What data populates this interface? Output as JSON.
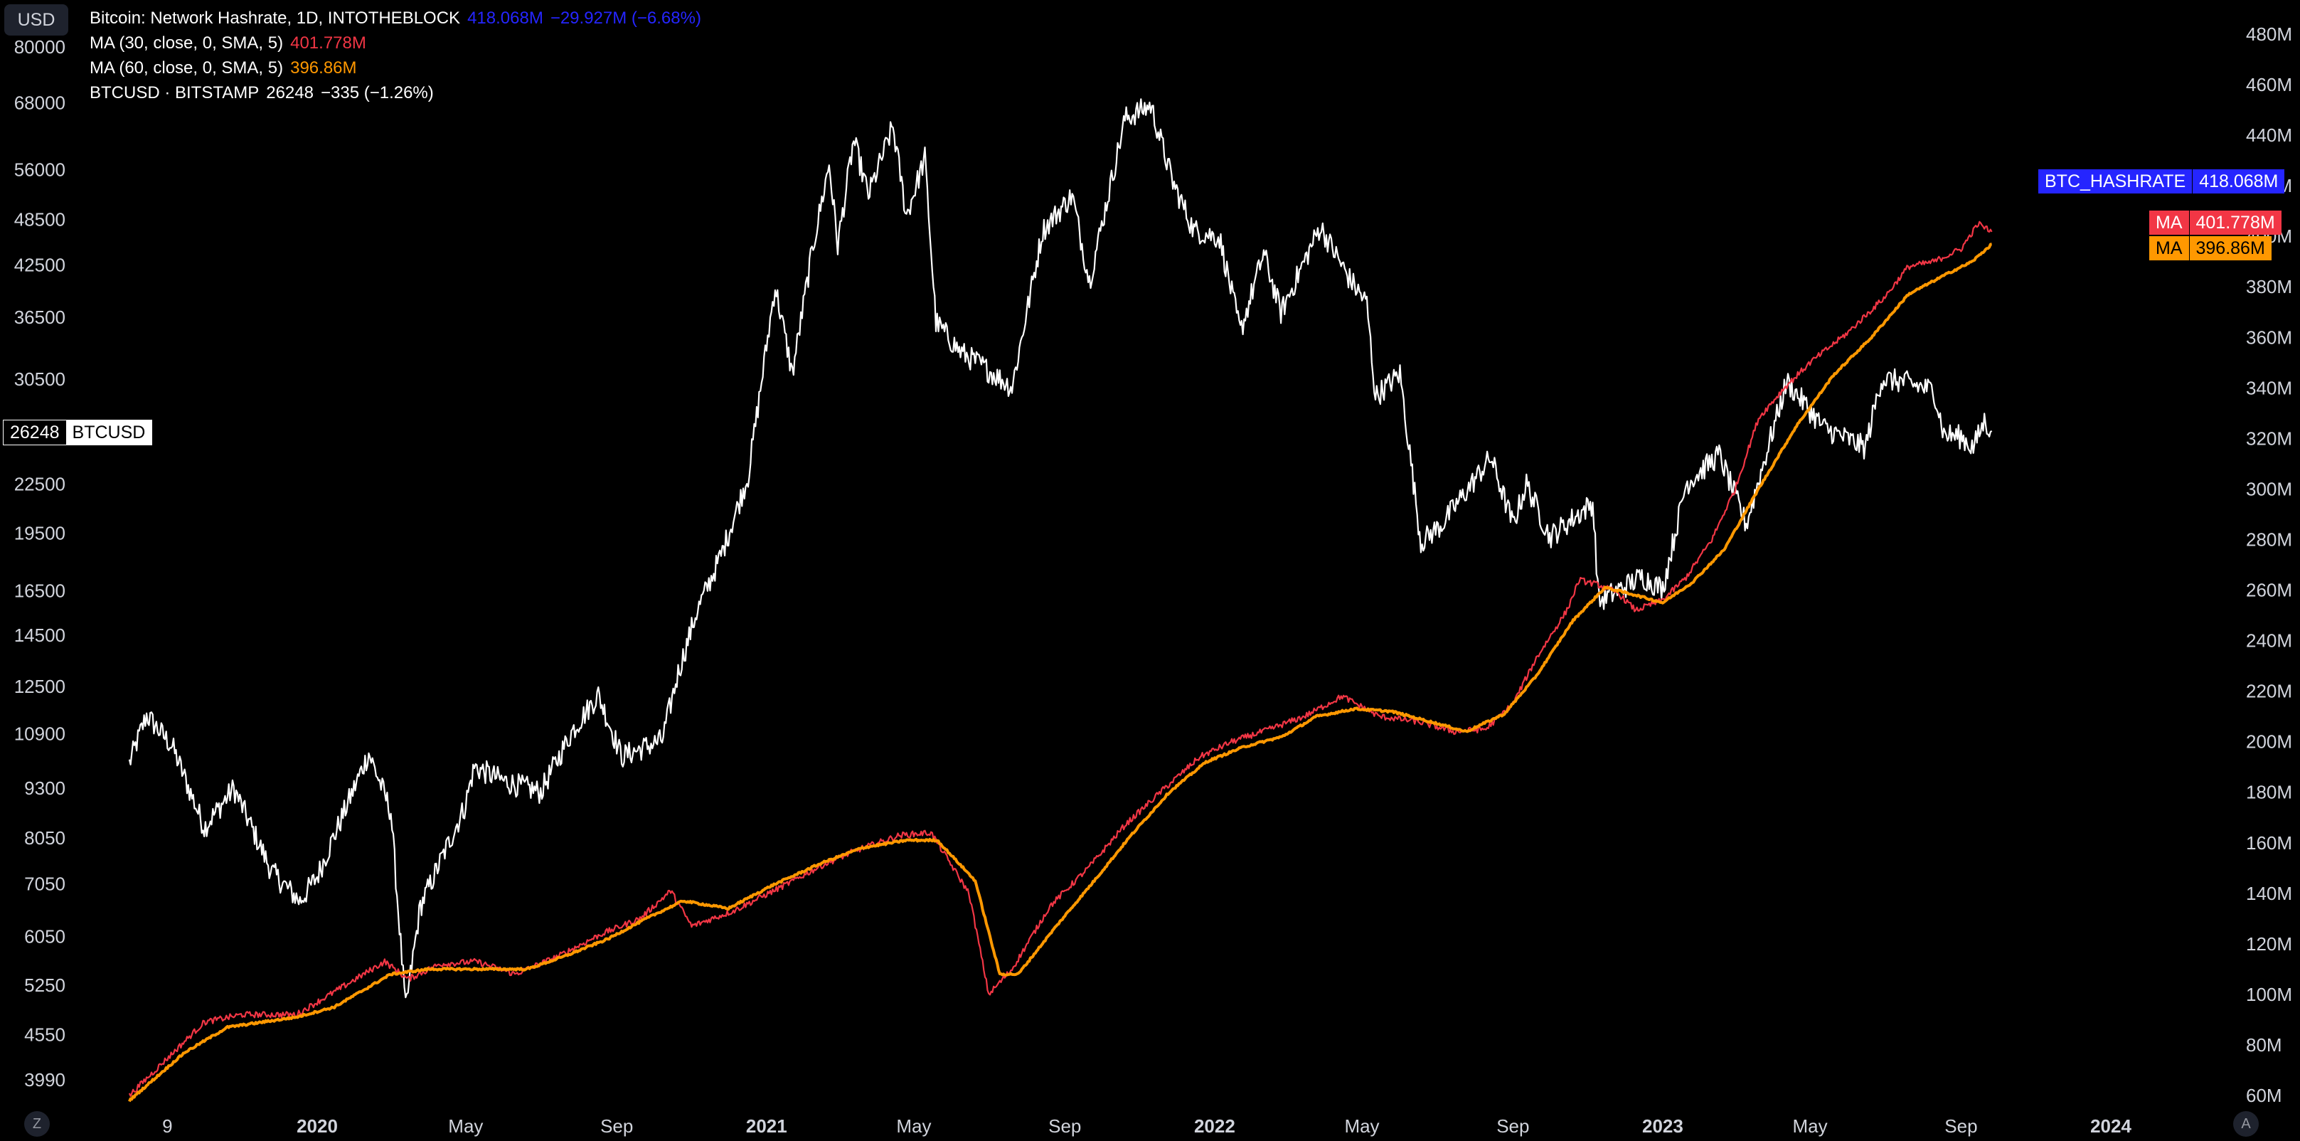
{
  "toolbar": {
    "currency_label": "USD",
    "zoom_label": "Z",
    "auto_label": "A"
  },
  "legend": {
    "hashrate": {
      "title": "Bitcoin: Network Hashrate, 1D, INTOTHEBLOCK",
      "value": "418.068M",
      "change": "−29.927M (−6.68%)"
    },
    "ma30": {
      "title": "MA (30, close, 0, SMA, 5)",
      "value": "401.778M"
    },
    "ma60": {
      "title": "MA (60, close, 0, SMA, 5)",
      "value": "396.86M"
    },
    "btc": {
      "title": "BTCUSD · BITSTAMP",
      "value": "26248",
      "change": "−335 (−1.26%)"
    }
  },
  "badges": {
    "btc_price": {
      "value": "26248",
      "label": "BTCUSD"
    },
    "hashrate": {
      "label": "BTC_HASHRATE",
      "value": "418.068M"
    },
    "ma30": {
      "label": "MA",
      "value": "401.778M"
    },
    "ma60": {
      "label": "MA",
      "value": "396.86M"
    }
  },
  "colors": {
    "background": "#000000",
    "btc": "#ffffff",
    "ma30": "#f23645",
    "ma60": "#ff9800",
    "hashrate": "#2525ff"
  },
  "chart_data": {
    "type": "line",
    "x_ticks": [
      "9",
      "2020",
      "May",
      "Sep",
      "2021",
      "May",
      "Sep",
      "2022",
      "May",
      "Sep",
      "2023",
      "May",
      "Sep",
      "2024"
    ],
    "x_tick_dates": [
      "2019-09-01",
      "2020-01-01",
      "2020-05-01",
      "2020-09-01",
      "2021-01-01",
      "2021-05-01",
      "2021-09-01",
      "2022-01-01",
      "2022-05-01",
      "2022-09-01",
      "2023-01-01",
      "2023-05-01",
      "2023-09-01",
      "2024-01-01"
    ],
    "left_axis": {
      "scale": "log",
      "ticks": [
        80000,
        68000,
        56000,
        48500,
        42500,
        36500,
        30500,
        22500,
        19500,
        16500,
        14500,
        12500,
        10900,
        9300,
        8050,
        7050,
        6050,
        5250,
        4550,
        3990
      ]
    },
    "right_axis": {
      "ticks": [
        "480M",
        "460M",
        "440M",
        "420M",
        "400M",
        "380M",
        "360M",
        "340M",
        "320M",
        "300M",
        "280M",
        "260M",
        "240M",
        "220M",
        "200M",
        "180M",
        "160M",
        "140M",
        "120M",
        "100M",
        "80M",
        "60M"
      ],
      "range_millions": [
        60,
        480
      ]
    },
    "series": [
      {
        "name": "BTCUSD",
        "axis": "left",
        "color": "#ffffff",
        "points": [
          [
            "2019-08-01",
            10000
          ],
          [
            "2019-08-15",
            11500
          ],
          [
            "2019-09-05",
            10500
          ],
          [
            "2019-10-01",
            8300
          ],
          [
            "2019-10-25",
            9300
          ],
          [
            "2019-11-25",
            7300
          ],
          [
            "2019-12-18",
            6700
          ],
          [
            "2020-01-01",
            7200
          ],
          [
            "2020-02-12",
            10300
          ],
          [
            "2020-03-01",
            8700
          ],
          [
            "2020-03-13",
            4900
          ],
          [
            "2020-03-25",
            6600
          ],
          [
            "2020-04-30",
            8800
          ],
          [
            "2020-05-08",
            9900
          ],
          [
            "2020-06-01",
            9500
          ],
          [
            "2020-07-01",
            9200
          ],
          [
            "2020-07-27",
            11000
          ],
          [
            "2020-08-17",
            12200
          ],
          [
            "2020-09-05",
            10200
          ],
          [
            "2020-10-08",
            10700
          ],
          [
            "2020-10-21",
            13000
          ],
          [
            "2020-11-05",
            15500
          ],
          [
            "2020-11-25",
            18300
          ],
          [
            "2020-12-17",
            23000
          ],
          [
            "2021-01-08",
            40000
          ],
          [
            "2021-01-22",
            31000
          ],
          [
            "2021-02-08",
            45000
          ],
          [
            "2021-02-21",
            57000
          ],
          [
            "2021-02-28",
            45000
          ],
          [
            "2021-03-13",
            61000
          ],
          [
            "2021-03-25",
            52000
          ],
          [
            "2021-04-14",
            63500
          ],
          [
            "2021-04-25",
            49000
          ],
          [
            "2021-05-10",
            58000
          ],
          [
            "2021-05-19",
            36000
          ],
          [
            "2021-06-08",
            33000
          ],
          [
            "2021-06-22",
            32000
          ],
          [
            "2021-07-20",
            29800
          ],
          [
            "2021-08-14",
            47000
          ],
          [
            "2021-09-07",
            52000
          ],
          [
            "2021-09-21",
            40500
          ],
          [
            "2021-10-20",
            65000
          ],
          [
            "2021-11-10",
            67500
          ],
          [
            "2021-11-28",
            54000
          ],
          [
            "2021-12-15",
            47000
          ],
          [
            "2022-01-05",
            46000
          ],
          [
            "2022-01-22",
            35000
          ],
          [
            "2022-02-10",
            44000
          ],
          [
            "2022-02-24",
            37000
          ],
          [
            "2022-03-28",
            47500
          ],
          [
            "2022-04-20",
            41000
          ],
          [
            "2022-05-05",
            38000
          ],
          [
            "2022-05-12",
            29000
          ],
          [
            "2022-06-01",
            31000
          ],
          [
            "2022-06-18",
            19000
          ],
          [
            "2022-07-05",
            20000
          ],
          [
            "2022-08-14",
            24300
          ],
          [
            "2022-09-01",
            20000
          ],
          [
            "2022-09-12",
            22500
          ],
          [
            "2022-10-01",
            19300
          ],
          [
            "2022-11-05",
            21300
          ],
          [
            "2022-11-10",
            16000
          ],
          [
            "2022-12-15",
            17200
          ],
          [
            "2023-01-01",
            16600
          ],
          [
            "2023-01-20",
            22500
          ],
          [
            "2023-02-16",
            24500
          ],
          [
            "2023-03-10",
            20000
          ],
          [
            "2023-04-12",
            30300
          ],
          [
            "2023-05-12",
            26500
          ],
          [
            "2023-06-15",
            25000
          ],
          [
            "2023-06-28",
            30500
          ],
          [
            "2023-07-15",
            30300
          ],
          [
            "2023-08-10",
            29500
          ],
          [
            "2023-08-18",
            26000
          ],
          [
            "2023-09-01",
            25800
          ],
          [
            "2023-09-11",
            25000
          ],
          [
            "2023-09-20",
            27000
          ],
          [
            "2023-09-26",
            26248
          ]
        ]
      },
      {
        "name": "MA (30, close, 0, SMA, 5)",
        "axis": "right",
        "color": "#f23645",
        "points": [
          [
            "2019-08-01",
            60
          ],
          [
            "2019-10-01",
            89
          ],
          [
            "2019-11-01",
            92
          ],
          [
            "2019-12-15",
            92
          ],
          [
            "2020-01-15",
            101
          ],
          [
            "2020-02-25",
            113
          ],
          [
            "2020-03-15",
            106
          ],
          [
            "2020-04-10",
            112
          ],
          [
            "2020-05-10",
            113
          ],
          [
            "2020-06-10",
            108
          ],
          [
            "2020-07-15",
            115
          ],
          [
            "2020-08-20",
            124
          ],
          [
            "2020-09-20",
            130
          ],
          [
            "2020-10-15",
            141
          ],
          [
            "2020-11-01",
            127
          ],
          [
            "2020-12-05",
            133
          ],
          [
            "2021-01-15",
            143
          ],
          [
            "2021-02-15",
            151
          ],
          [
            "2021-03-15",
            157
          ],
          [
            "2021-04-20",
            163
          ],
          [
            "2021-05-15",
            164
          ],
          [
            "2021-06-15",
            140
          ],
          [
            "2021-07-01",
            100
          ],
          [
            "2021-07-20",
            110
          ],
          [
            "2021-08-20",
            135
          ],
          [
            "2021-09-20",
            150
          ],
          [
            "2021-10-20",
            167
          ],
          [
            "2021-11-20",
            181
          ],
          [
            "2021-12-20",
            194
          ],
          [
            "2022-01-15",
            200
          ],
          [
            "2022-02-15",
            205
          ],
          [
            "2022-03-15",
            210
          ],
          [
            "2022-04-15",
            218
          ],
          [
            "2022-05-15",
            210
          ],
          [
            "2022-06-15",
            208
          ],
          [
            "2022-07-15",
            204
          ],
          [
            "2022-08-10",
            205
          ],
          [
            "2022-09-01",
            215
          ],
          [
            "2022-09-20",
            233
          ],
          [
            "2022-10-15",
            252
          ],
          [
            "2022-10-25",
            264
          ],
          [
            "2022-11-10",
            262
          ],
          [
            "2022-11-25",
            259
          ],
          [
            "2022-12-10",
            252
          ],
          [
            "2023-01-01",
            256
          ],
          [
            "2023-01-20",
            265
          ],
          [
            "2023-02-10",
            280
          ],
          [
            "2023-03-01",
            300
          ],
          [
            "2023-03-20",
            328
          ],
          [
            "2023-04-10",
            340
          ],
          [
            "2023-05-01",
            350
          ],
          [
            "2023-06-01",
            362
          ],
          [
            "2023-07-01",
            376
          ],
          [
            "2023-07-20",
            388
          ],
          [
            "2023-08-10",
            390
          ],
          [
            "2023-09-01",
            395
          ],
          [
            "2023-09-15",
            405
          ],
          [
            "2023-09-26",
            401.778
          ]
        ]
      },
      {
        "name": "MA (60, close, 0, SMA, 5)",
        "axis": "right",
        "color": "#ff9800",
        "points": [
          [
            "2019-08-01",
            58
          ],
          [
            "2019-09-15",
            77
          ],
          [
            "2019-10-20",
            87
          ],
          [
            "2019-12-15",
            91
          ],
          [
            "2020-01-15",
            95
          ],
          [
            "2020-03-01",
            108
          ],
          [
            "2020-04-01",
            110
          ],
          [
            "2020-05-15",
            110
          ],
          [
            "2020-06-20",
            110
          ],
          [
            "2020-07-20",
            115
          ],
          [
            "2020-08-25",
            122
          ],
          [
            "2020-09-25",
            130
          ],
          [
            "2020-10-25",
            137
          ],
          [
            "2020-12-01",
            134
          ],
          [
            "2021-01-05",
            143
          ],
          [
            "2021-02-15",
            152
          ],
          [
            "2021-03-20",
            158
          ],
          [
            "2021-04-25",
            161
          ],
          [
            "2021-05-20",
            161
          ],
          [
            "2021-06-20",
            145
          ],
          [
            "2021-07-10",
            108
          ],
          [
            "2021-07-25",
            108
          ],
          [
            "2021-08-25",
            127
          ],
          [
            "2021-09-25",
            145
          ],
          [
            "2021-10-25",
            163
          ],
          [
            "2021-11-25",
            180
          ],
          [
            "2021-12-25",
            192
          ],
          [
            "2022-01-25",
            198
          ],
          [
            "2022-02-25",
            202
          ],
          [
            "2022-03-25",
            210
          ],
          [
            "2022-04-25",
            213
          ],
          [
            "2022-05-25",
            212
          ],
          [
            "2022-06-25",
            208
          ],
          [
            "2022-07-25",
            204
          ],
          [
            "2022-08-25",
            211
          ],
          [
            "2022-09-20",
            226
          ],
          [
            "2022-10-20",
            248
          ],
          [
            "2022-11-15",
            261
          ],
          [
            "2022-12-10",
            258
          ],
          [
            "2023-01-01",
            255
          ],
          [
            "2023-01-25",
            263
          ],
          [
            "2023-02-20",
            276
          ],
          [
            "2023-03-20",
            300
          ],
          [
            "2023-04-20",
            325
          ],
          [
            "2023-05-20",
            345
          ],
          [
            "2023-06-20",
            360
          ],
          [
            "2023-07-20",
            377
          ],
          [
            "2023-08-20",
            385
          ],
          [
            "2023-09-10",
            390
          ],
          [
            "2023-09-26",
            396.86
          ]
        ]
      }
    ]
  }
}
